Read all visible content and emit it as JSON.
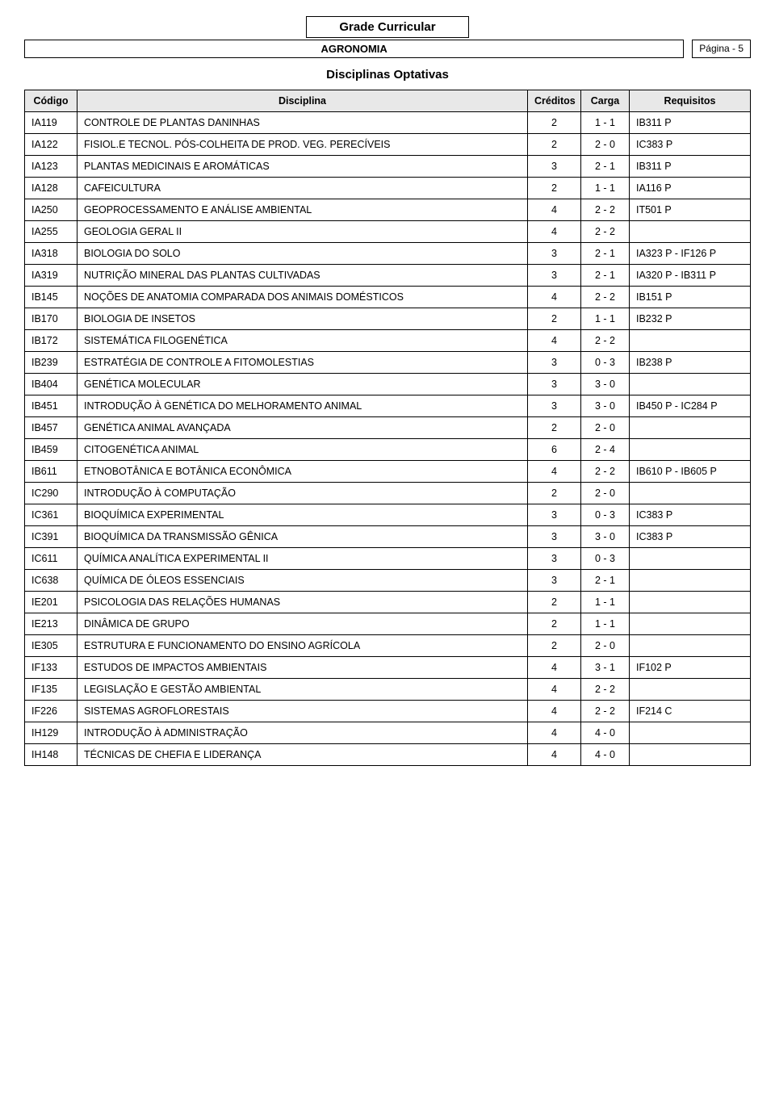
{
  "header": {
    "title": "Grade Curricular",
    "subtitle": "AGRONOMIA",
    "page_label": "Página - 5",
    "section": "Disciplinas Optativas"
  },
  "table": {
    "columns": [
      "Código",
      "Disciplina",
      "Créditos",
      "Carga",
      "Requisitos"
    ],
    "rows": [
      {
        "code": "IA119",
        "disc": "CONTROLE DE PLANTAS DANINHAS",
        "cred": "2",
        "carga": "1 - 1",
        "req": "IB311 P"
      },
      {
        "code": "IA122",
        "disc": "FISIOL.E TECNOL. PÓS-COLHEITA DE PROD. VEG. PERECÍVEIS",
        "cred": "2",
        "carga": "2 - 0",
        "req": "IC383 P"
      },
      {
        "code": "IA123",
        "disc": "PLANTAS MEDICINAIS E AROMÁTICAS",
        "cred": "3",
        "carga": "2 - 1",
        "req": "IB311 P"
      },
      {
        "code": "IA128",
        "disc": "CAFEICULTURA",
        "cred": "2",
        "carga": "1 - 1",
        "req": "IA116 P"
      },
      {
        "code": "IA250",
        "disc": "GEOPROCESSAMENTO E ANÁLISE AMBIENTAL",
        "cred": "4",
        "carga": "2 - 2",
        "req": "IT501 P"
      },
      {
        "code": "IA255",
        "disc": "GEOLOGIA GERAL II",
        "cred": "4",
        "carga": "2 - 2",
        "req": ""
      },
      {
        "code": "IA318",
        "disc": "BIOLOGIA DO SOLO",
        "cred": "3",
        "carga": "2 - 1",
        "req": "IA323 P - IF126 P"
      },
      {
        "code": "IA319",
        "disc": "NUTRIÇÃO MINERAL DAS PLANTAS CULTIVADAS",
        "cred": "3",
        "carga": "2 - 1",
        "req": "IA320 P - IB311 P"
      },
      {
        "code": "IB145",
        "disc": "NOÇÕES DE ANATOMIA COMPARADA DOS ANIMAIS DOMÉSTICOS",
        "cred": "4",
        "carga": "2 - 2",
        "req": "IB151 P"
      },
      {
        "code": "IB170",
        "disc": "BIOLOGIA DE INSETOS",
        "cred": "2",
        "carga": "1 - 1",
        "req": "IB232 P"
      },
      {
        "code": "IB172",
        "disc": "SISTEMÁTICA FILOGENÉTICA",
        "cred": "4",
        "carga": "2 - 2",
        "req": ""
      },
      {
        "code": "IB239",
        "disc": "ESTRATÉGIA DE CONTROLE A FITOMOLESTIAS",
        "cred": "3",
        "carga": "0 - 3",
        "req": "IB238 P"
      },
      {
        "code": "IB404",
        "disc": "GENÉTICA MOLECULAR",
        "cred": "3",
        "carga": "3 - 0",
        "req": ""
      },
      {
        "code": "IB451",
        "disc": "INTRODUÇÃO À GENÉTICA DO MELHORAMENTO ANIMAL",
        "cred": "3",
        "carga": "3 - 0",
        "req": "IB450 P - IC284 P"
      },
      {
        "code": "IB457",
        "disc": "GENÉTICA ANIMAL AVANÇADA",
        "cred": "2",
        "carga": "2 - 0",
        "req": ""
      },
      {
        "code": "IB459",
        "disc": "CITOGENÉTICA ANIMAL",
        "cred": "6",
        "carga": "2 - 4",
        "req": ""
      },
      {
        "code": "IB611",
        "disc": "ETNOBOTÂNICA E BOTÂNICA ECONÔMICA",
        "cred": "4",
        "carga": "2 - 2",
        "req": "IB610 P - IB605 P"
      },
      {
        "code": "IC290",
        "disc": "INTRODUÇÃO À COMPUTAÇÃO",
        "cred": "2",
        "carga": "2 - 0",
        "req": ""
      },
      {
        "code": "IC361",
        "disc": "BIOQUÍMICA EXPERIMENTAL",
        "cred": "3",
        "carga": "0 - 3",
        "req": "IC383 P"
      },
      {
        "code": "IC391",
        "disc": "BIOQUÍMICA DA TRANSMISSÃO GÊNICA",
        "cred": "3",
        "carga": "3 - 0",
        "req": "IC383 P"
      },
      {
        "code": "IC611",
        "disc": "QUÍMICA ANALÍTICA EXPERIMENTAL II",
        "cred": "3",
        "carga": "0 - 3",
        "req": ""
      },
      {
        "code": "IC638",
        "disc": "QUÍMICA DE ÓLEOS ESSENCIAIS",
        "cred": "3",
        "carga": "2 - 1",
        "req": ""
      },
      {
        "code": "IE201",
        "disc": "PSICOLOGIA DAS RELAÇÕES HUMANAS",
        "cred": "2",
        "carga": "1 - 1",
        "req": ""
      },
      {
        "code": "IE213",
        "disc": "DINÂMICA DE GRUPO",
        "cred": "2",
        "carga": "1 - 1",
        "req": ""
      },
      {
        "code": "IE305",
        "disc": "ESTRUTURA E FUNCIONAMENTO DO ENSINO AGRÍCOLA",
        "cred": "2",
        "carga": "2 - 0",
        "req": ""
      },
      {
        "code": "IF133",
        "disc": "ESTUDOS DE IMPACTOS AMBIENTAIS",
        "cred": "4",
        "carga": "3 - 1",
        "req": "IF102 P"
      },
      {
        "code": "IF135",
        "disc": "LEGISLAÇÃO E GESTÃO AMBIENTAL",
        "cred": "4",
        "carga": "2 - 2",
        "req": ""
      },
      {
        "code": "IF226",
        "disc": "SISTEMAS AGROFLORESTAIS",
        "cred": "4",
        "carga": "2 - 2",
        "req": "IF214 C"
      },
      {
        "code": "IH129",
        "disc": "INTRODUÇÃO À ADMINISTRAÇÃO",
        "cred": "4",
        "carga": "4 - 0",
        "req": ""
      },
      {
        "code": "IH148",
        "disc": "TÉCNICAS DE CHEFIA E LIDERANÇA",
        "cred": "4",
        "carga": "4 - 0",
        "req": ""
      }
    ]
  },
  "style": {
    "header_bg": "#e8e8e8",
    "border_color": "#000000",
    "background": "#ffffff",
    "font_family": "Arial",
    "title_fontsize": 15,
    "body_fontsize": 12.5
  }
}
